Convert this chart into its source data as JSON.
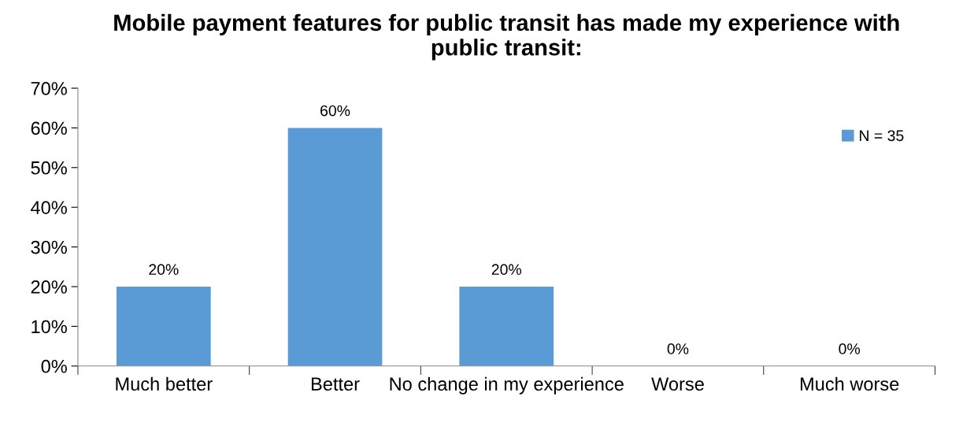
{
  "chart_data": {
    "type": "bar",
    "title": "Mobile payment features for public transit has made my experience with public transit:",
    "categories": [
      "Much better",
      "Better",
      "No change in my experience",
      "Worse",
      "Much worse"
    ],
    "series": [
      {
        "name": "N = 35",
        "color": "#5b9bd5",
        "values": [
          20,
          60,
          20,
          0,
          0
        ],
        "value_labels": [
          "20%",
          "60%",
          "20%",
          "0%",
          "0%"
        ]
      }
    ],
    "ylim": [
      0,
      70
    ],
    "yticks": [
      {
        "value": 0,
        "label": "0%"
      },
      {
        "value": 10,
        "label": "10%"
      },
      {
        "value": 20,
        "label": "20%"
      },
      {
        "value": 30,
        "label": "30%"
      },
      {
        "value": 40,
        "label": "40%"
      },
      {
        "value": 50,
        "label": "50%"
      },
      {
        "value": 60,
        "label": "60%"
      },
      {
        "value": 70,
        "label": "70%"
      }
    ],
    "grid": false,
    "legend": "upper right"
  }
}
